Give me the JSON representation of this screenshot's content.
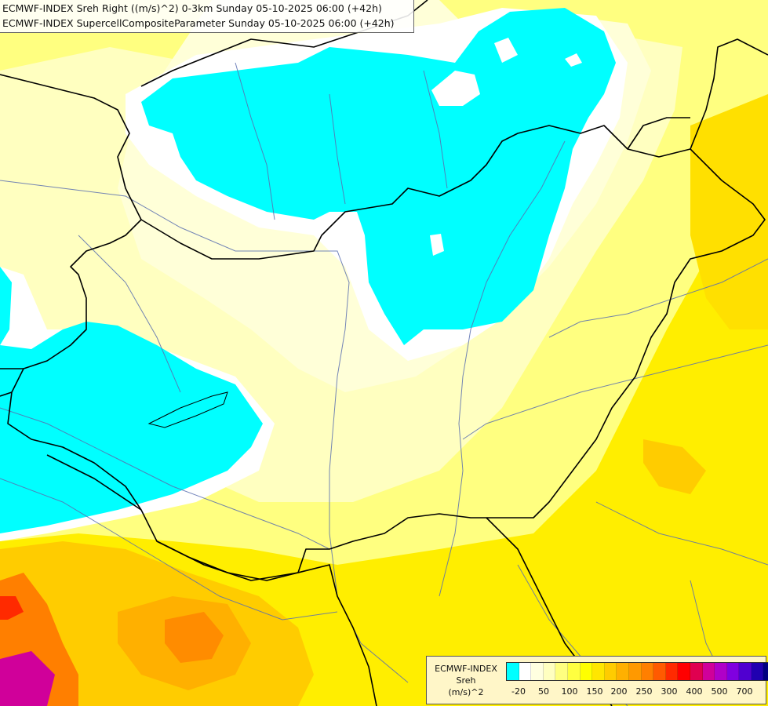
{
  "titles": {
    "line1": "ECMWF-INDEX Sreh Right ((m/s)^2) 0-3km Sunday 05-10-2025 06:00 (+42h)",
    "line2": "ECMWF-INDEX SupercellCompositeParameter Sunday 05-10-2025 06:00 (+42h)"
  },
  "legend": {
    "title_line1": "ECMWF-INDEX",
    "title_line2": "Sreh",
    "title_line3": "(m/s)^2",
    "colors": [
      "#00ffff",
      "#ffffff",
      "#ffffe0",
      "#ffffc0",
      "#ffff80",
      "#ffff40",
      "#ffff00",
      "#ffe600",
      "#ffcc00",
      "#ffb000",
      "#ff9900",
      "#ff7f00",
      "#ff5a00",
      "#ff2a00",
      "#ff0000",
      "#e00050",
      "#d0009a",
      "#b000c8",
      "#8000e0",
      "#5000d0",
      "#2000b0",
      "#000080"
    ],
    "ticks": [
      "-20",
      "50",
      "100",
      "150",
      "200",
      "250",
      "300",
      "400",
      "500",
      "700"
    ]
  },
  "colors": {
    "cyan": "#00ffff",
    "white": "#ffffff",
    "pale_yellow": "#ffffc0",
    "light_yellow": "#ffff80",
    "yellow": "#ffff00",
    "gold": "#ffe600",
    "orange": "#ffb000",
    "dark_orange": "#ff7f00",
    "red": "#ff2a00",
    "magenta": "#d0009a",
    "border": "#000000",
    "river": "#5a6fb0"
  }
}
